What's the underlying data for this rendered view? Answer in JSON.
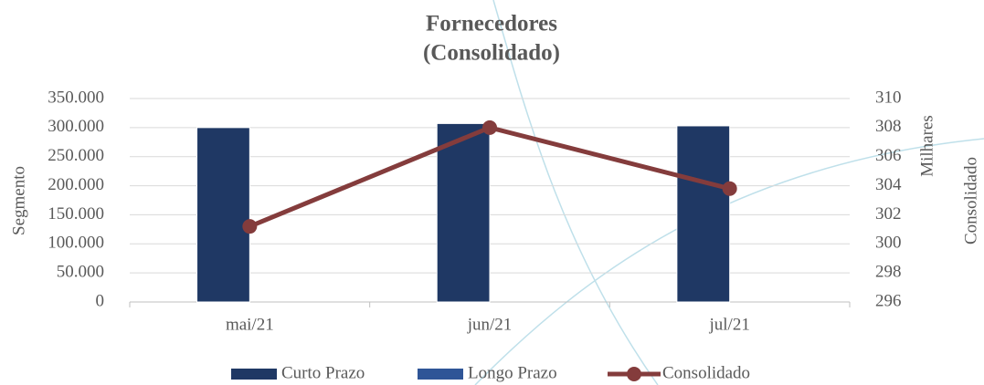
{
  "chart_data": {
    "type": "bar-line",
    "title": [
      "Fornecedores",
      "(Consolidado)"
    ],
    "y_label": "Segmento",
    "y2_label": [
      "Milhares",
      "Consolidado"
    ],
    "categories": [
      "mai/21",
      "jun/21",
      "jul/21"
    ],
    "series": [
      {
        "name": "Curto Prazo",
        "color": "#1f3864",
        "type": "bar",
        "values": [
          300000,
          307000,
          303000
        ]
      },
      {
        "name": "Longo Prazo",
        "color": "#2f5597",
        "type": "bar",
        "values": [
          0,
          0,
          0
        ]
      },
      {
        "name": "Consolidado",
        "color": "#843c3c",
        "type": "line",
        "axis": "y2",
        "values": [
          301.2,
          308,
          303.8
        ]
      }
    ],
    "ylim": [
      0,
      350000
    ],
    "yticks": [
      0,
      {
        "value": 50000,
        "label": "50.000"
      },
      {
        "value": 100000,
        "label": "100.000"
      },
      {
        "value": 150000,
        "label": "150.000"
      },
      {
        "value": 200000,
        "label": "200.000"
      },
      {
        "value": 250000,
        "label": "250.000"
      },
      {
        "value": 300000,
        "label": "300.000"
      },
      {
        "value": 350000,
        "label": "350.000"
      }
    ],
    "y2lim": [
      296,
      310
    ],
    "y2ticks": [
      296,
      298,
      300,
      302,
      304,
      306,
      308,
      310
    ],
    "grid": true,
    "legend": "bottom"
  }
}
